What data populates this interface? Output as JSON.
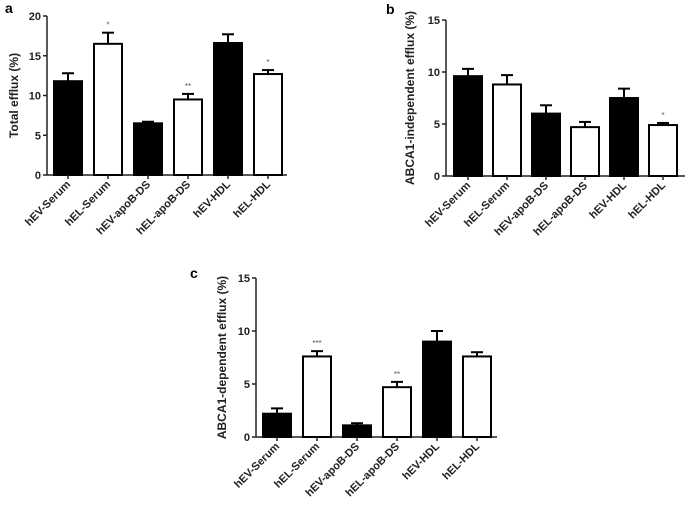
{
  "chart_data": [
    {
      "panel_label": "a",
      "type": "bar",
      "ylabel": "Total efflux (%)",
      "ylim": [
        0,
        20
      ],
      "yticks": [
        0,
        5,
        10,
        15,
        20
      ],
      "categories": [
        "hEV-Serum",
        "hEL-Serum",
        "hEV-apoB-DS",
        "hEL-apoB-DS",
        "hEV-HDL",
        "hEL-HDL"
      ],
      "values": [
        11.8,
        16.5,
        6.5,
        9.5,
        16.6,
        12.7
      ],
      "errors": [
        1.0,
        1.4,
        0.2,
        0.7,
        1.1,
        0.5
      ],
      "fills": [
        "black",
        "white",
        "black",
        "white",
        "black",
        "white"
      ],
      "significance": [
        "",
        "*",
        "",
        "**",
        "",
        "*"
      ],
      "grid": false
    },
    {
      "panel_label": "b",
      "type": "bar",
      "ylabel": "ABCA1-independent efflux (%)",
      "ylim": [
        0,
        15
      ],
      "yticks": [
        0,
        5,
        10,
        15
      ],
      "categories": [
        "hEV-Serum",
        "hEL-Serum",
        "hEV-apoB-DS",
        "hEL-apoB-DS",
        "hEV-HDL",
        "hEL-HDL"
      ],
      "values": [
        9.6,
        8.8,
        6.0,
        4.7,
        7.5,
        4.9
      ],
      "errors": [
        0.7,
        0.9,
        0.8,
        0.5,
        0.9,
        0.2
      ],
      "fills": [
        "black",
        "white",
        "black",
        "white",
        "black",
        "white"
      ],
      "significance": [
        "",
        "",
        "",
        "",
        "",
        "*"
      ],
      "grid": false
    },
    {
      "panel_label": "c",
      "type": "bar",
      "ylabel": "ABCA1-dependent efflux (%)",
      "ylim": [
        0,
        15
      ],
      "yticks": [
        0,
        5,
        10,
        15
      ],
      "categories": [
        "hEV-Serum",
        "hEL-Serum",
        "hEV-apoB-DS",
        "hEL-apoB-DS",
        "hEV-HDL",
        "hEL-HDL"
      ],
      "values": [
        2.2,
        7.6,
        1.1,
        4.7,
        9.0,
        7.6
      ],
      "errors": [
        0.5,
        0.5,
        0.2,
        0.5,
        1.0,
        0.4
      ],
      "fills": [
        "black",
        "white",
        "black",
        "white",
        "black",
        "white"
      ],
      "significance": [
        "",
        "***",
        "",
        "**",
        "",
        ""
      ],
      "grid": false
    }
  ]
}
